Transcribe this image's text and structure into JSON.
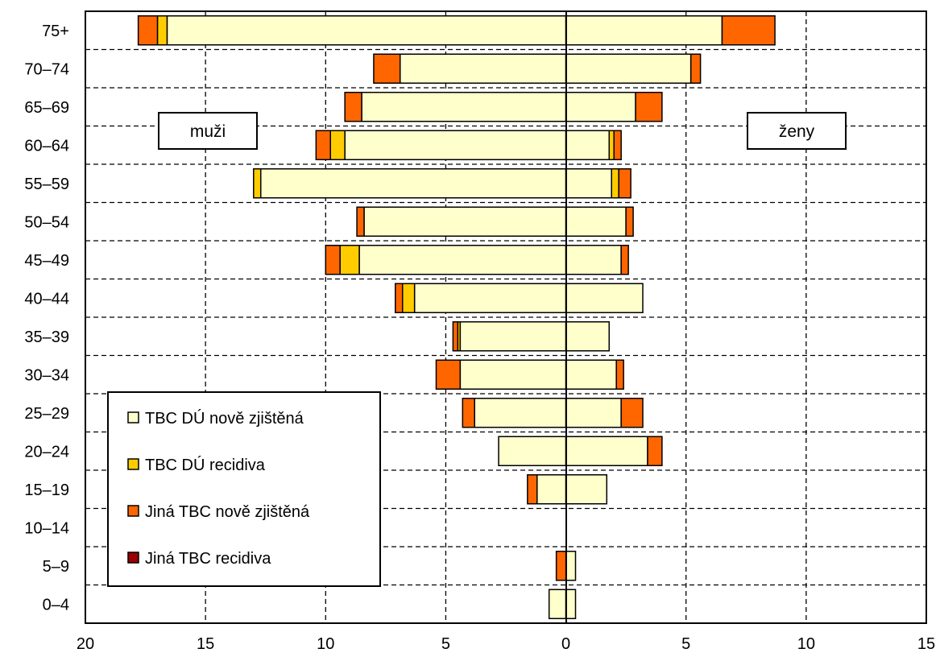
{
  "chart_data": {
    "type": "bar",
    "orientation": "horizontal-diverging",
    "categories": [
      "75+",
      "70–74",
      "65–69",
      "60–64",
      "55–59",
      "50–54",
      "45–49",
      "40–44",
      "35–39",
      "30–34",
      "25–29",
      "20–24",
      "15–19",
      "10–14",
      "5–9",
      "0–4"
    ],
    "side_labels": {
      "left": "muži",
      "right": "ženy"
    },
    "series": [
      {
        "name": "TBC DÚ nově zjištěná",
        "color": "#FFFFCC",
        "male": [
          16.6,
          6.9,
          8.5,
          9.2,
          12.7,
          8.4,
          8.6,
          6.3,
          4.4,
          4.4,
          3.8,
          2.8,
          1.2,
          0,
          0,
          0.7
        ],
        "female": [
          6.5,
          5.2,
          2.9,
          1.8,
          1.9,
          2.5,
          2.3,
          3.2,
          1.8,
          2.1,
          2.3,
          3.4,
          1.7,
          0,
          0.4,
          0.4
        ]
      },
      {
        "name": "TBC DÚ recidiva",
        "color": "#FFCC00",
        "male": [
          0.4,
          0,
          0,
          0.6,
          0.3,
          0,
          0.8,
          0.5,
          0.1,
          0,
          0,
          0,
          0,
          0,
          0,
          0
        ],
        "female": [
          0,
          0,
          0,
          0.2,
          0.3,
          0,
          0,
          0,
          0,
          0,
          0,
          0,
          0,
          0,
          0,
          0
        ]
      },
      {
        "name": "Jiná TBC nově zjištěná",
        "color": "#FF6600",
        "male": [
          0.8,
          1.1,
          0.7,
          0.6,
          0,
          0.3,
          0.6,
          0.3,
          0.2,
          1.0,
          0.5,
          0,
          0.4,
          0,
          0.4,
          0
        ],
        "female": [
          2.2,
          0.4,
          1.1,
          0.3,
          0.5,
          0.3,
          0.3,
          0,
          0,
          0.3,
          0.9,
          0.6,
          0,
          0,
          0,
          0
        ]
      },
      {
        "name": "Jiná TBC recidiva",
        "color": "#990000",
        "male": [
          0,
          0,
          0,
          0,
          0,
          0,
          0,
          0,
          0,
          0,
          0,
          0,
          0,
          0,
          0,
          0
        ],
        "female": [
          0,
          0,
          0,
          0,
          0,
          0,
          0,
          0,
          0,
          0,
          0,
          0,
          0,
          0,
          0,
          0
        ]
      }
    ],
    "x_ticks": [
      "20",
      "15",
      "10",
      "5",
      "0",
      "5",
      "10",
      "15"
    ],
    "x_tick_values": [
      -20,
      -15,
      -10,
      -5,
      0,
      5,
      10,
      15
    ],
    "xlim": [
      -20,
      15
    ],
    "grid": true,
    "legend_position": "bottom-left"
  }
}
